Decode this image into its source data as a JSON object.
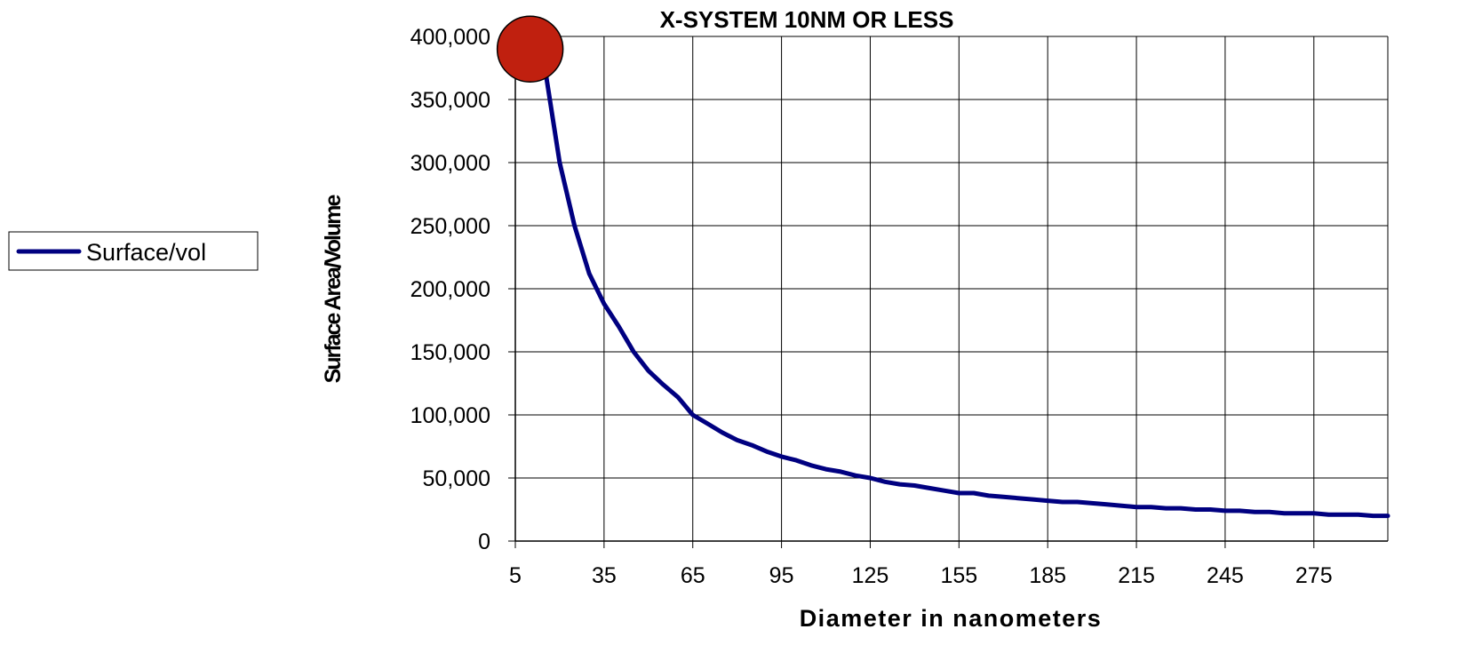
{
  "chart_data": {
    "type": "line",
    "title": "X-SYSTEM  10NM OR LESS",
    "xlabel": "Diameter in nanometers",
    "ylabel": "Surface Area/Volume",
    "xlim": [
      5,
      300
    ],
    "ylim": [
      0,
      400000
    ],
    "x_ticks": [
      "5",
      "35",
      "65",
      "95",
      "125",
      "155",
      "185",
      "215",
      "245",
      "275"
    ],
    "y_ticks": [
      "0",
      "50,000",
      "100,000",
      "150,000",
      "200,000",
      "250,000",
      "300,000",
      "350,000",
      "400,000"
    ],
    "grid": true,
    "legend_position": "left",
    "series": [
      {
        "name": "Surface/vol",
        "color": "#000080",
        "x": [
          15,
          20,
          25,
          30,
          35,
          40,
          45,
          50,
          55,
          60,
          65,
          70,
          75,
          80,
          85,
          90,
          95,
          100,
          105,
          110,
          115,
          120,
          125,
          130,
          135,
          140,
          145,
          150,
          155,
          160,
          165,
          170,
          175,
          180,
          185,
          190,
          195,
          200,
          205,
          210,
          215,
          220,
          225,
          230,
          235,
          240,
          245,
          250,
          255,
          260,
          265,
          270,
          275,
          280,
          285,
          290,
          295,
          300
        ],
        "y": [
          375000,
          300000,
          250000,
          212000,
          188000,
          170000,
          150000,
          135000,
          124000,
          114000,
          100000,
          93000,
          86000,
          80000,
          76000,
          71000,
          67000,
          64000,
          60000,
          57000,
          55000,
          52000,
          50000,
          47000,
          45000,
          44000,
          42000,
          40000,
          38000,
          38000,
          36000,
          35000,
          34000,
          33000,
          32000,
          31000,
          31000,
          30000,
          29000,
          28000,
          27000,
          27000,
          26000,
          26000,
          25000,
          25000,
          24000,
          24000,
          23000,
          23000,
          22000,
          22000,
          22000,
          21000,
          21000,
          21000,
          20000,
          20000
        ]
      }
    ],
    "annotations": [
      {
        "type": "circle-marker",
        "x": 10,
        "y": 390000,
        "color": "#c0200f"
      }
    ]
  }
}
